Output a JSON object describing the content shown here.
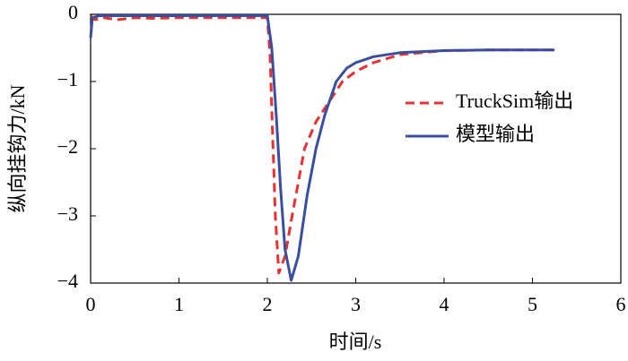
{
  "chart_data": {
    "type": "line",
    "xlabel": "时间/s",
    "ylabel": "纵向挂钩力/kN",
    "xlim": [
      0,
      6
    ],
    "xticks": [
      0,
      1,
      2,
      3,
      4,
      5,
      6
    ],
    "ylim": [
      -4,
      0
    ],
    "yticks": [
      {
        "value": 0,
        "label": "0"
      },
      {
        "value": -1,
        "label": "−1"
      },
      {
        "value": -2,
        "label": "−2"
      },
      {
        "value": -3,
        "label": "−3"
      },
      {
        "value": -4,
        "label": "−4"
      }
    ],
    "legend": "right",
    "series": [
      {
        "name": "TruckSim输出",
        "color": "#e8312f",
        "dash": true,
        "x": [
          0,
          0.05,
          0.15,
          0.3,
          0.5,
          0.7,
          1.0,
          2.0,
          2.03,
          2.06,
          2.09,
          2.13,
          2.2,
          2.28,
          2.35,
          2.42,
          2.55,
          2.7,
          2.85,
          3.0,
          3.2,
          3.5,
          4.0,
          4.5,
          5.25
        ],
        "values": [
          -0.02,
          -0.08,
          -0.05,
          -0.08,
          -0.05,
          -0.06,
          -0.05,
          -0.05,
          -0.6,
          -1.8,
          -3.0,
          -3.85,
          -3.6,
          -3.0,
          -2.5,
          -2.0,
          -1.6,
          -1.3,
          -1.0,
          -0.85,
          -0.72,
          -0.6,
          -0.54,
          -0.53,
          -0.53
        ]
      },
      {
        "name": "模型输出",
        "color": "#3a4ea0",
        "dash": false,
        "x": [
          0,
          0.02,
          0.1,
          1.0,
          2.0,
          2.05,
          2.1,
          2.15,
          2.2,
          2.27,
          2.35,
          2.45,
          2.55,
          2.65,
          2.78,
          2.9,
          3.0,
          3.2,
          3.5,
          4.0,
          4.5,
          5.25
        ],
        "values": [
          -0.35,
          -0.05,
          -0.02,
          -0.02,
          -0.02,
          -0.5,
          -1.5,
          -2.6,
          -3.5,
          -3.96,
          -3.6,
          -2.7,
          -2.0,
          -1.5,
          -1.0,
          -0.8,
          -0.72,
          -0.63,
          -0.57,
          -0.54,
          -0.53,
          -0.53
        ]
      }
    ]
  }
}
